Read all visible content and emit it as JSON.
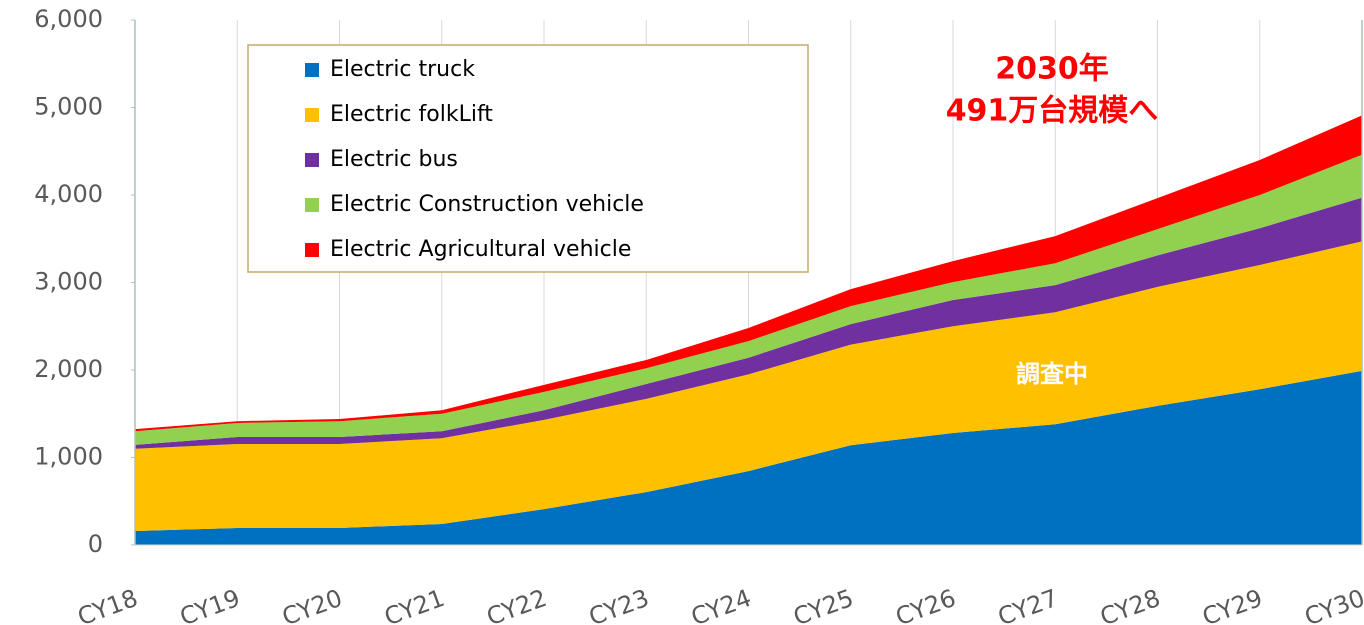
{
  "chart_data": {
    "type": "stacked_area",
    "categories": [
      "CY18",
      "CY19",
      "CY20",
      "CY21",
      "CY22",
      "CY23",
      "CY24",
      "CY25",
      "CY26",
      "CY27",
      "CY28",
      "CY29",
      "CY30"
    ],
    "series": [
      {
        "name": "Electric truck",
        "color": "#0070c0",
        "values": [
          160,
          195,
          195,
          240,
          410,
          605,
          845,
          1140,
          1280,
          1380,
          1590,
          1780,
          1990
        ]
      },
      {
        "name": "Electric folkLift",
        "color": "#ffc000",
        "values": [
          940,
          960,
          960,
          980,
          1020,
          1065,
          1105,
          1150,
          1220,
          1280,
          1360,
          1420,
          1480
        ]
      },
      {
        "name": "Electric bus",
        "color": "#7030a0",
        "values": [
          45,
          80,
          80,
          80,
          110,
          170,
          190,
          235,
          300,
          310,
          360,
          420,
          500
        ]
      },
      {
        "name": "Electric Construction vehicle",
        "color": "#92d050",
        "values": [
          155,
          160,
          180,
          200,
          210,
          180,
          190,
          205,
          205,
          250,
          300,
          380,
          490
        ]
      },
      {
        "name": "Electric Agricultural vehicle",
        "color": "#ff0000",
        "values": [
          25,
          20,
          25,
          40,
          80,
          95,
          150,
          195,
          240,
          310,
          355,
          400,
          450
        ]
      }
    ],
    "ylim": [
      0,
      6000
    ],
    "yticks": [
      0,
      {
        "value": 1000,
        "label": "1,000"
      },
      {
        "value": 2000,
        "label": "2,000"
      },
      {
        "value": 3000,
        "label": "3,000"
      },
      {
        "value": 4000,
        "label": "4,000"
      },
      {
        "value": 5000,
        "label": "5,000"
      },
      {
        "value": 6000,
        "label": "6,000"
      }
    ],
    "annotations": [
      "2030年",
      "491万台規模へ",
      "調査中"
    ],
    "grid": true
  }
}
